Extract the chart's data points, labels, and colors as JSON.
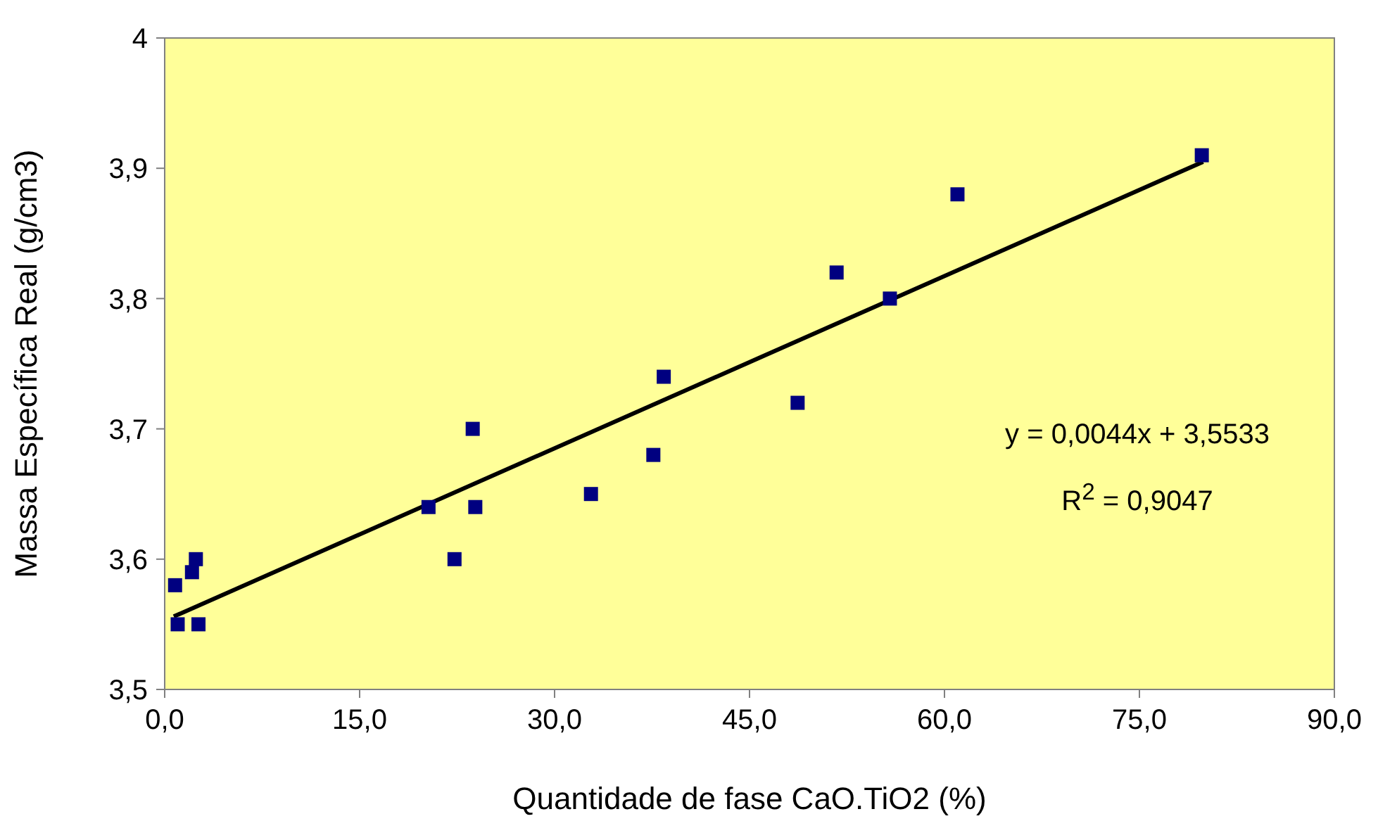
{
  "chart_data": {
    "type": "scatter",
    "xlabel": "Quantidade de fase CaO.TiO2 (%)",
    "ylabel": "Massa Específica Real (g/cm3)",
    "series": [
      {
        "color": "#000080",
        "marker": "square",
        "x": [
          0.8,
          1.0,
          2.1,
          2.4,
          2.6,
          20.3,
          22.3,
          23.7,
          23.9,
          32.8,
          37.6,
          38.4,
          48.7,
          51.7,
          55.8,
          61.0,
          79.8
        ],
        "values": [
          3.58,
          3.55,
          3.59,
          3.6,
          3.55,
          3.64,
          3.6,
          3.7,
          3.64,
          3.65,
          3.68,
          3.74,
          3.72,
          3.82,
          3.8,
          3.88,
          3.91
        ]
      },
      {
        "type": "line",
        "color": "#000000",
        "x": [
          0.7,
          79.9
        ],
        "values": [
          3.556,
          3.905
        ]
      }
    ],
    "xlim": [
      0,
      90
    ],
    "ylim": [
      3.5,
      4
    ],
    "xticks": [
      {
        "value": 0,
        "label": "0,0"
      },
      {
        "value": 15,
        "label": "15,0"
      },
      {
        "value": 30,
        "label": "30,0"
      },
      {
        "value": 45,
        "label": "45,0"
      },
      {
        "value": 60,
        "label": "60,0"
      },
      {
        "value": 75,
        "label": "75,0"
      },
      {
        "value": 90,
        "label": "90,0"
      }
    ],
    "yticks": [
      {
        "value": 3.5,
        "label": "3,5"
      },
      {
        "value": 3.6,
        "label": "3,6"
      },
      {
        "value": 3.7,
        "label": "3,7"
      },
      {
        "value": 3.8,
        "label": "3,8"
      },
      {
        "value": 3.9,
        "label": "3,9"
      },
      4
    ],
    "annotations": [
      "y = 0,0044x + 3,5533",
      "R$^{2}$ = 0,9047"
    ]
  }
}
